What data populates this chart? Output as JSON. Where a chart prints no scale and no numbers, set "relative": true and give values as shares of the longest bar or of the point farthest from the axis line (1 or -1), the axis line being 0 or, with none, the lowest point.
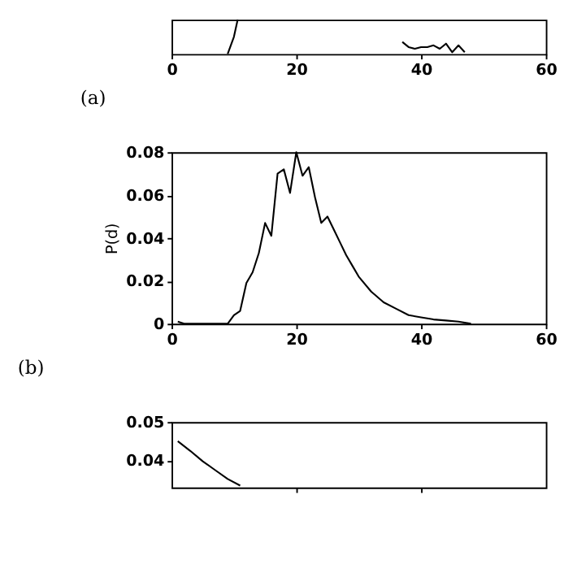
{
  "chart_data": [
    {
      "type": "line",
      "relative": true,
      "series": [
        {
          "color": "#000000",
          "x": [
            9,
            10,
            10.6
          ],
          "values": [
            0,
            0.5,
            1
          ]
        },
        {
          "color": "#000000",
          "x": [
            37,
            38,
            39,
            40,
            41,
            42,
            43,
            44,
            45,
            46,
            47
          ],
          "values": [
            0.35,
            0.2,
            0.15,
            0.2,
            0.2,
            0.25,
            0.15,
            0.3,
            0.05,
            0.25,
            0.05
          ]
        }
      ],
      "xlim": [
        0,
        60
      ],
      "xticks": [
        0,
        20,
        40,
        60
      ],
      "annotations": [
        "(a)"
      ]
    },
    {
      "type": "line",
      "series": [
        {
          "color": "#000000",
          "x": [
            1,
            2,
            3,
            9,
            10,
            11,
            12,
            13,
            14,
            15,
            16,
            17,
            18,
            19,
            20,
            21,
            22,
            23,
            24,
            25,
            26,
            27,
            28,
            29,
            30,
            32,
            34,
            36,
            38,
            40,
            42,
            44,
            46,
            48
          ],
          "values": [
            0.001,
            0,
            0,
            0,
            0.004,
            0.006,
            0.019,
            0.024,
            0.033,
            0.047,
            0.041,
            0.07,
            0.072,
            0.061,
            0.08,
            0.069,
            0.073,
            0.059,
            0.047,
            0.05,
            0.044,
            0.038,
            0.032,
            0.027,
            0.022,
            0.015,
            0.01,
            0.007,
            0.004,
            0.003,
            0.002,
            0.0015,
            0.001,
            0
          ]
        }
      ],
      "xlim": [
        0,
        60
      ],
      "xticks": [
        0,
        20,
        40,
        60
      ],
      "ylim": [
        0,
        0.08
      ],
      "yticks": [
        0,
        0.02,
        0.04,
        0.06,
        0.08
      ],
      "ylabel": "P(d)",
      "annotations": [
        "(b)"
      ]
    },
    {
      "type": "line",
      "series": [
        {
          "color": "#000000",
          "x": [
            1,
            3,
            5,
            7,
            9,
            11
          ],
          "values": [
            0.045,
            0.0425,
            0.0398,
            0.0375,
            0.0352,
            0.0335
          ]
        }
      ],
      "xlim": [
        0,
        60
      ],
      "xticks": [
        {
          "value": 20,
          "label": null
        },
        {
          "value": 40,
          "label": null
        }
      ],
      "ylim": [
        0.033,
        0.05
      ],
      "yticks": [
        0.04,
        0.05
      ],
      "tick_labels": "y"
    }
  ]
}
